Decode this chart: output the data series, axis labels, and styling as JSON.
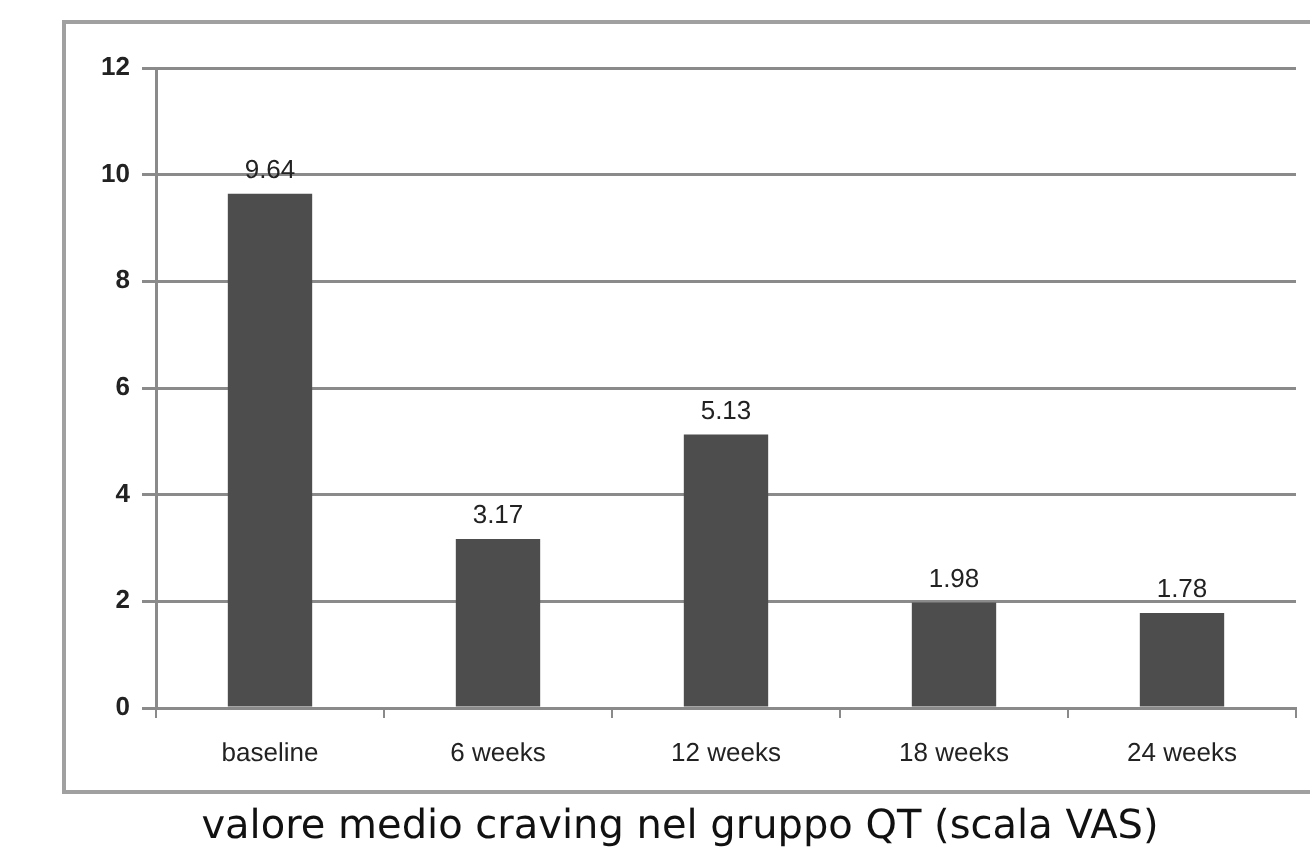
{
  "chart_data": {
    "type": "bar",
    "categories": [
      "baseline",
      "6 weeks",
      "12 weeks",
      "18 weeks",
      "24 weeks"
    ],
    "values": [
      9.64,
      3.17,
      5.13,
      1.98,
      1.78
    ],
    "color": "#4d4d4d",
    "ylim": [
      0,
      12
    ],
    "yticks": [
      0,
      2,
      4,
      6,
      8,
      10,
      12
    ],
    "grid": "y",
    "data_labels": true,
    "annotations": [
      "valore medio craving nel gruppo QT (scala VAS)"
    ]
  }
}
